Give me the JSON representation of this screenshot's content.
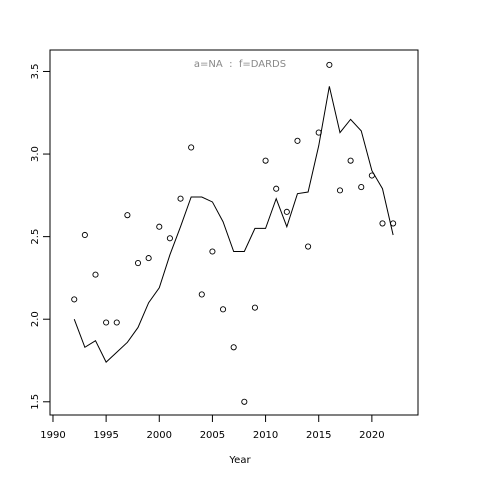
{
  "chart_data": {
    "type": "line",
    "title": "a=NA  :  f=DARDS",
    "xlabel": "Year",
    "x": [
      1992,
      1993,
      1994,
      1995,
      1996,
      1997,
      1998,
      1999,
      2000,
      2001,
      2002,
      2003,
      2004,
      2005,
      2006,
      2007,
      2008,
      2009,
      2010,
      2011,
      2012,
      2013,
      2014,
      2015,
      2016,
      2017,
      2018,
      2019,
      2020,
      2021,
      2022
    ],
    "series": [
      {
        "draw": "points",
        "color": "#000000",
        "values": [
          2.12,
          2.51,
          2.27,
          1.98,
          1.98,
          2.63,
          2.34,
          2.37,
          2.56,
          2.49,
          2.73,
          3.04,
          2.15,
          2.41,
          2.06,
          1.83,
          1.5,
          2.07,
          2.96,
          2.79,
          2.65,
          3.08,
          2.44,
          3.13,
          3.54,
          2.78,
          2.96,
          2.8,
          2.87,
          2.58,
          2.58
        ]
      },
      {
        "draw": "line",
        "color": "#000000",
        "values": [
          2.0,
          1.83,
          1.87,
          1.74,
          1.8,
          1.86,
          1.95,
          2.1,
          2.19,
          2.39,
          2.56,
          2.74,
          2.74,
          2.71,
          2.59,
          2.41,
          2.41,
          2.55,
          2.55,
          2.73,
          2.56,
          2.76,
          2.77,
          3.05,
          3.41,
          3.13,
          3.21,
          3.14,
          2.9,
          2.79,
          2.51
        ]
      }
    ],
    "xlim": [
      1989.72,
      2024.34
    ],
    "ylim": [
      1.42,
      3.63
    ],
    "xticks": [
      1990,
      1995,
      2000,
      2005,
      2010,
      2015,
      2020
    ],
    "yticks": [
      1.5,
      {
        "value": 2.0,
        "label": "2.0"
      },
      2.5,
      {
        "value": 3.0,
        "label": "3.0"
      },
      3.5
    ]
  }
}
